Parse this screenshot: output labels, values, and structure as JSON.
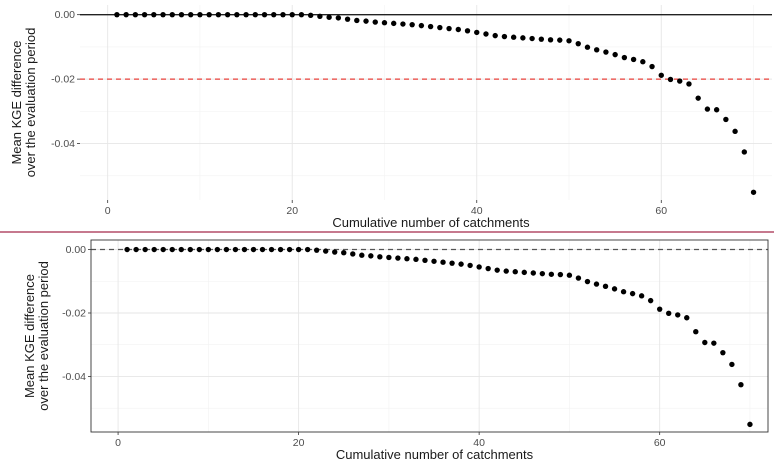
{
  "chart_data": [
    {
      "type": "scatter",
      "title": "",
      "xlabel": "Cumulative number of catchments",
      "ylabel": [
        "Mean KGE difference",
        "over the evaluation period"
      ],
      "xlim": [
        -3,
        72
      ],
      "ylim": [
        -0.0575,
        0.003
      ],
      "xticks": [
        0,
        20,
        40,
        60
      ],
      "yticks": [
        0.0,
        -0.02,
        -0.04
      ],
      "ytick_labels": [
        "0.00",
        "-0.02",
        "-0.04"
      ],
      "grid": true,
      "hlines": [
        {
          "y": 0.0,
          "style": "solid",
          "color": "#222222"
        },
        {
          "y": -0.02,
          "style": "dashed",
          "color": "#e8413a"
        }
      ],
      "x": [
        1,
        2,
        3,
        4,
        5,
        6,
        7,
        8,
        9,
        10,
        11,
        12,
        13,
        14,
        15,
        16,
        17,
        18,
        19,
        20,
        21,
        22,
        23,
        24,
        25,
        26,
        27,
        28,
        29,
        30,
        31,
        32,
        33,
        34,
        35,
        36,
        37,
        38,
        39,
        40,
        41,
        42,
        43,
        44,
        45,
        46,
        47,
        48,
        49,
        50,
        51,
        52,
        53,
        54,
        55,
        56,
        57,
        58,
        59,
        60,
        61,
        62,
        63,
        64,
        65,
        66,
        67,
        68,
        69,
        70
      ],
      "y": [
        0,
        0,
        0,
        0,
        0,
        0,
        0,
        0,
        0,
        0,
        0,
        0,
        0,
        0,
        0,
        0,
        0,
        0,
        0,
        0,
        0,
        -0.0002,
        -0.0005,
        -0.0008,
        -0.001,
        -0.0014,
        -0.0018,
        -0.002,
        -0.0023,
        -0.0025,
        -0.0027,
        -0.0029,
        -0.0031,
        -0.0034,
        -0.0037,
        -0.004,
        -0.0043,
        -0.0046,
        -0.005,
        -0.0055,
        -0.006,
        -0.0065,
        -0.0068,
        -0.007,
        -0.0072,
        -0.0074,
        -0.0076,
        -0.0078,
        -0.0079,
        -0.0081,
        -0.009,
        -0.0101,
        -0.0109,
        -0.0116,
        -0.0124,
        -0.0133,
        -0.0139,
        -0.0146,
        -0.0161,
        -0.0188,
        -0.0201,
        -0.0206,
        -0.0215,
        -0.0259,
        -0.0293,
        -0.0295,
        -0.0325,
        -0.0362,
        -0.0426,
        -0.0551
      ]
    },
    {
      "type": "scatter",
      "title": "",
      "xlabel": "Cumulative number of catchments",
      "ylabel": [
        "Mean KGE difference",
        "over the evaluation period"
      ],
      "xlim": [
        -3,
        72
      ],
      "ylim": [
        -0.0575,
        0.003
      ],
      "xticks": [
        0,
        20,
        40,
        60
      ],
      "yticks": [
        0.0,
        -0.02,
        -0.04
      ],
      "ytick_labels": [
        "0.00",
        "-0.02",
        "-0.04"
      ],
      "grid": true,
      "hlines": [
        {
          "y": 0.0,
          "style": "dashed",
          "color": "#555555"
        }
      ],
      "x": [
        1,
        2,
        3,
        4,
        5,
        6,
        7,
        8,
        9,
        10,
        11,
        12,
        13,
        14,
        15,
        16,
        17,
        18,
        19,
        20,
        21,
        22,
        23,
        24,
        25,
        26,
        27,
        28,
        29,
        30,
        31,
        32,
        33,
        34,
        35,
        36,
        37,
        38,
        39,
        40,
        41,
        42,
        43,
        44,
        45,
        46,
        47,
        48,
        49,
        50,
        51,
        52,
        53,
        54,
        55,
        56,
        57,
        58,
        59,
        60,
        61,
        62,
        63,
        64,
        65,
        66,
        67,
        68,
        69,
        70
      ],
      "y": [
        0,
        0,
        0,
        0,
        0,
        0,
        0,
        0,
        0,
        0,
        0,
        0,
        0,
        0,
        0,
        0,
        0,
        0,
        0,
        0,
        0,
        -0.0002,
        -0.0005,
        -0.0008,
        -0.001,
        -0.0014,
        -0.0018,
        -0.002,
        -0.0023,
        -0.0025,
        -0.0027,
        -0.0029,
        -0.0031,
        -0.0034,
        -0.0037,
        -0.004,
        -0.0043,
        -0.0046,
        -0.005,
        -0.0055,
        -0.006,
        -0.0065,
        -0.0068,
        -0.007,
        -0.0072,
        -0.0074,
        -0.0076,
        -0.0078,
        -0.0079,
        -0.0081,
        -0.009,
        -0.0101,
        -0.0109,
        -0.0116,
        -0.0124,
        -0.0133,
        -0.0139,
        -0.0146,
        -0.0161,
        -0.0188,
        -0.0201,
        -0.0206,
        -0.0215,
        -0.0259,
        -0.0293,
        -0.0295,
        -0.0325,
        -0.0362,
        -0.0426,
        -0.0551
      ]
    }
  ]
}
